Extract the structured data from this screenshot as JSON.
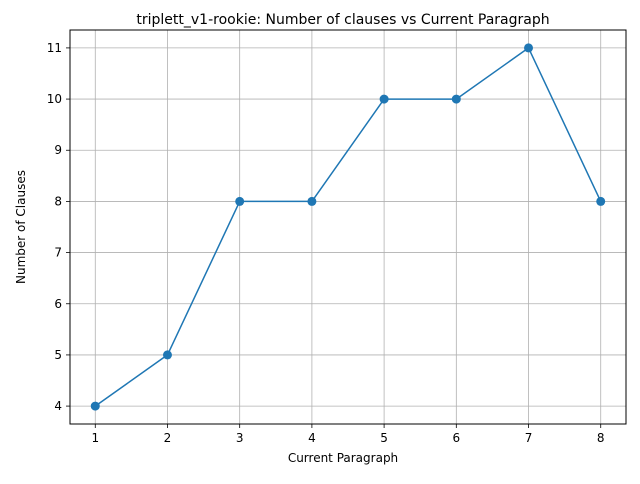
{
  "chart_data": {
    "type": "line",
    "title": "triplett_v1-rookie: Number of clauses vs Current Paragraph",
    "xlabel": "Current Paragraph",
    "ylabel": "Number of Clauses",
    "x": [
      1,
      2,
      3,
      4,
      5,
      6,
      7,
      8
    ],
    "series": [
      {
        "values": [
          4,
          5,
          8,
          8,
          10,
          10,
          11,
          8
        ],
        "color": "#1f77b4",
        "marker": "circle"
      }
    ],
    "xlim": [
      0.65,
      8.35
    ],
    "ylim": [
      3.65,
      11.35
    ],
    "xticks": [
      1,
      2,
      3,
      4,
      5,
      6,
      7,
      8
    ],
    "yticks": [
      4,
      5,
      6,
      7,
      8,
      9,
      10,
      11
    ],
    "grid": true,
    "grid_color": "#b0b0b0"
  }
}
